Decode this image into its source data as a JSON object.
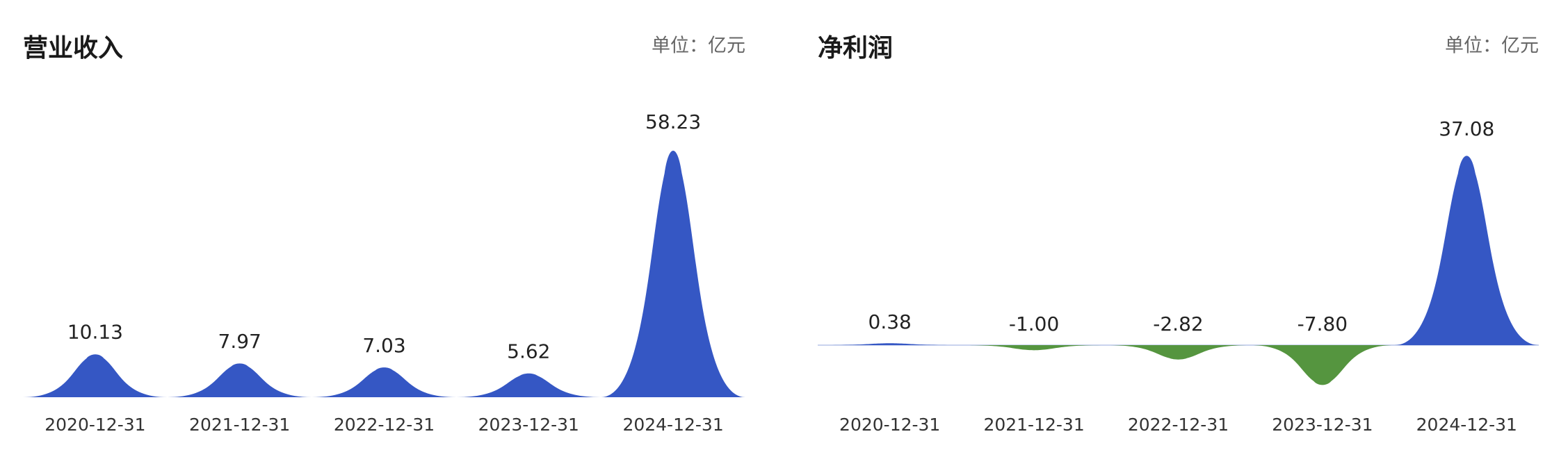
{
  "chart_data": [
    {
      "type": "pictorialBar",
      "title": "营业收入",
      "unit": "单位：亿元",
      "categories": [
        "2020-12-31",
        "2021-12-31",
        "2022-12-31",
        "2023-12-31",
        "2024-12-31"
      ],
      "values": [
        10.13,
        7.97,
        7.03,
        5.62,
        58.23
      ],
      "color": "#3557c4",
      "negative_color": "#55953f"
    },
    {
      "type": "pictorialBar",
      "title": "净利润",
      "unit": "单位：亿元",
      "categories": [
        "2020-12-31",
        "2021-12-31",
        "2022-12-31",
        "2023-12-31",
        "2024-12-31"
      ],
      "values": [
        0.38,
        -1.0,
        -2.82,
        -7.8,
        37.08
      ],
      "value_labels": [
        "0.38",
        "-1.00",
        "-2.82",
        "-7.80",
        "37.08"
      ],
      "color": "#3557c4",
      "negative_color": "#55953f"
    }
  ]
}
